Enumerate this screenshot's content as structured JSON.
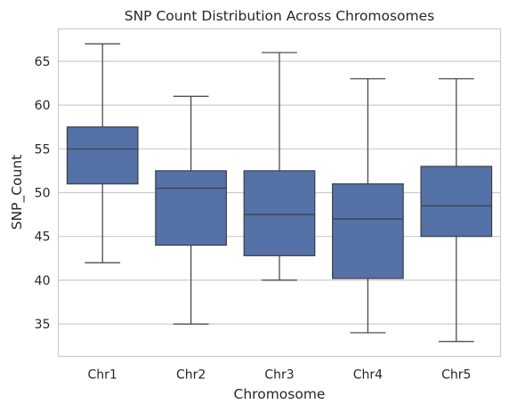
{
  "chart_data": {
    "type": "box",
    "title": "SNP Count Distribution Across Chromosomes",
    "xlabel": "Chromosome",
    "ylabel": "SNP_Count",
    "ylim": [
      31.3,
      68.7
    ],
    "yticks": [
      35,
      40,
      45,
      50,
      55,
      60,
      65
    ],
    "grid": "horizontal",
    "box_color": "#5471a8",
    "edge_color": "#3f3f3f",
    "categories": [
      "Chr1",
      "Chr2",
      "Chr3",
      "Chr4",
      "Chr5"
    ],
    "boxes": [
      {
        "category": "Chr1",
        "min": 42,
        "q1": 51,
        "median": 55,
        "q3": 57.5,
        "max": 67
      },
      {
        "category": "Chr2",
        "min": 35,
        "q1": 44,
        "median": 50.5,
        "q3": 52.5,
        "max": 61
      },
      {
        "category": "Chr3",
        "min": 40,
        "q1": 42.8,
        "median": 47.5,
        "q3": 52.5,
        "max": 66
      },
      {
        "category": "Chr4",
        "min": 34,
        "q1": 40.2,
        "median": 47,
        "q3": 51,
        "max": 63
      },
      {
        "category": "Chr5",
        "min": 33,
        "q1": 45,
        "median": 48.5,
        "q3": 53,
        "max": 63
      }
    ]
  }
}
